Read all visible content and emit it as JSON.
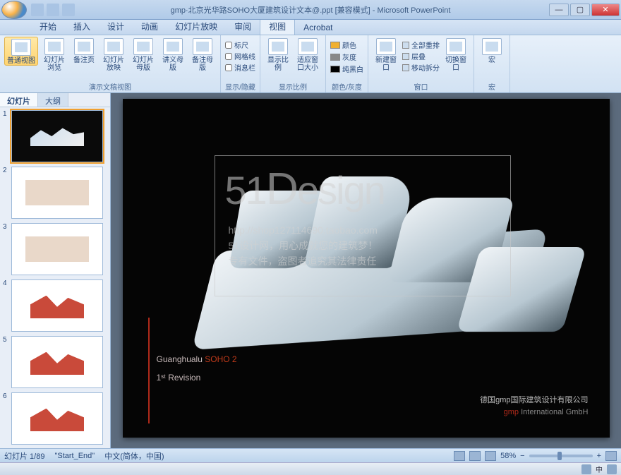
{
  "titlebar": {
    "title": "gmp·北京光华路SOHO大厦建筑设计文本@.ppt [兼容模式] - Microsoft PowerPoint",
    "min": "—",
    "max": "▢",
    "close": "✕"
  },
  "tabs": {
    "items": [
      "开始",
      "插入",
      "设计",
      "动画",
      "幻灯片放映",
      "审阅",
      "视图",
      "Acrobat"
    ],
    "activeIndex": 6
  },
  "ribbon": {
    "groups": {
      "views": {
        "label": "演示文稿视图",
        "btns": [
          "普通视图",
          "幻灯片浏览",
          "备注页",
          "幻灯片放映",
          "幻灯片母版",
          "讲义母版",
          "备注母版"
        ]
      },
      "showhide": {
        "label": "显示/隐藏",
        "checks": [
          {
            "label": "标尺",
            "checked": false
          },
          {
            "label": "网格线",
            "checked": false
          },
          {
            "label": "消息栏",
            "checked": false
          }
        ]
      },
      "zoom": {
        "label": "显示比例",
        "btns": [
          "显示比例",
          "适应窗口大小"
        ]
      },
      "color": {
        "label": "颜色/灰度",
        "rows": [
          {
            "label": "颜色",
            "color": "#f0b030"
          },
          {
            "label": "灰度",
            "color": "#888888"
          },
          {
            "label": "纯黑白",
            "color": "#000000"
          }
        ]
      },
      "window": {
        "label": "窗口",
        "btn": "新建窗口",
        "side": [
          "全部重排",
          "层叠",
          "移动拆分"
        ],
        "switch": "切换窗口"
      },
      "macro": {
        "label": "宏",
        "btn": "宏"
      }
    }
  },
  "sidetabs": {
    "slides": "幻灯片",
    "outline": "大纲"
  },
  "thumbs": [
    {
      "n": "1",
      "cls": "dark",
      "sel": true
    },
    {
      "n": "2",
      "cls": "light",
      "sel": false
    },
    {
      "n": "3",
      "cls": "light",
      "sel": false
    },
    {
      "n": "4",
      "cls": "red",
      "sel": false
    },
    {
      "n": "5",
      "cls": "red",
      "sel": false
    },
    {
      "n": "6",
      "cls": "red",
      "sel": false
    }
  ],
  "slide": {
    "watermark_title_a": "51",
    "watermark_title_b": "D",
    "watermark_title_c": "esign",
    "wm_url": "http://shop127114690.taobao.com",
    "wm_line1": "51设计网，用心成就您的建筑梦！",
    "wm_line2": "专有文件，盗图者追究其法律责任",
    "txt1_a": "Guanghualu ",
    "txt1_b": "SOHO 2",
    "txt2": "1ˢᵗ Revision",
    "footer_cn": "德国gmp国际建筑设计有限公司",
    "footer_en_a": "gmp",
    "footer_en_b": " International GmbH"
  },
  "status": {
    "slide": "幻灯片 1/89",
    "layout": "\"Start_End\"",
    "lang": "中文(简体，中国)",
    "zoom": "58%"
  },
  "taskbar": {
    "ime": "中"
  }
}
